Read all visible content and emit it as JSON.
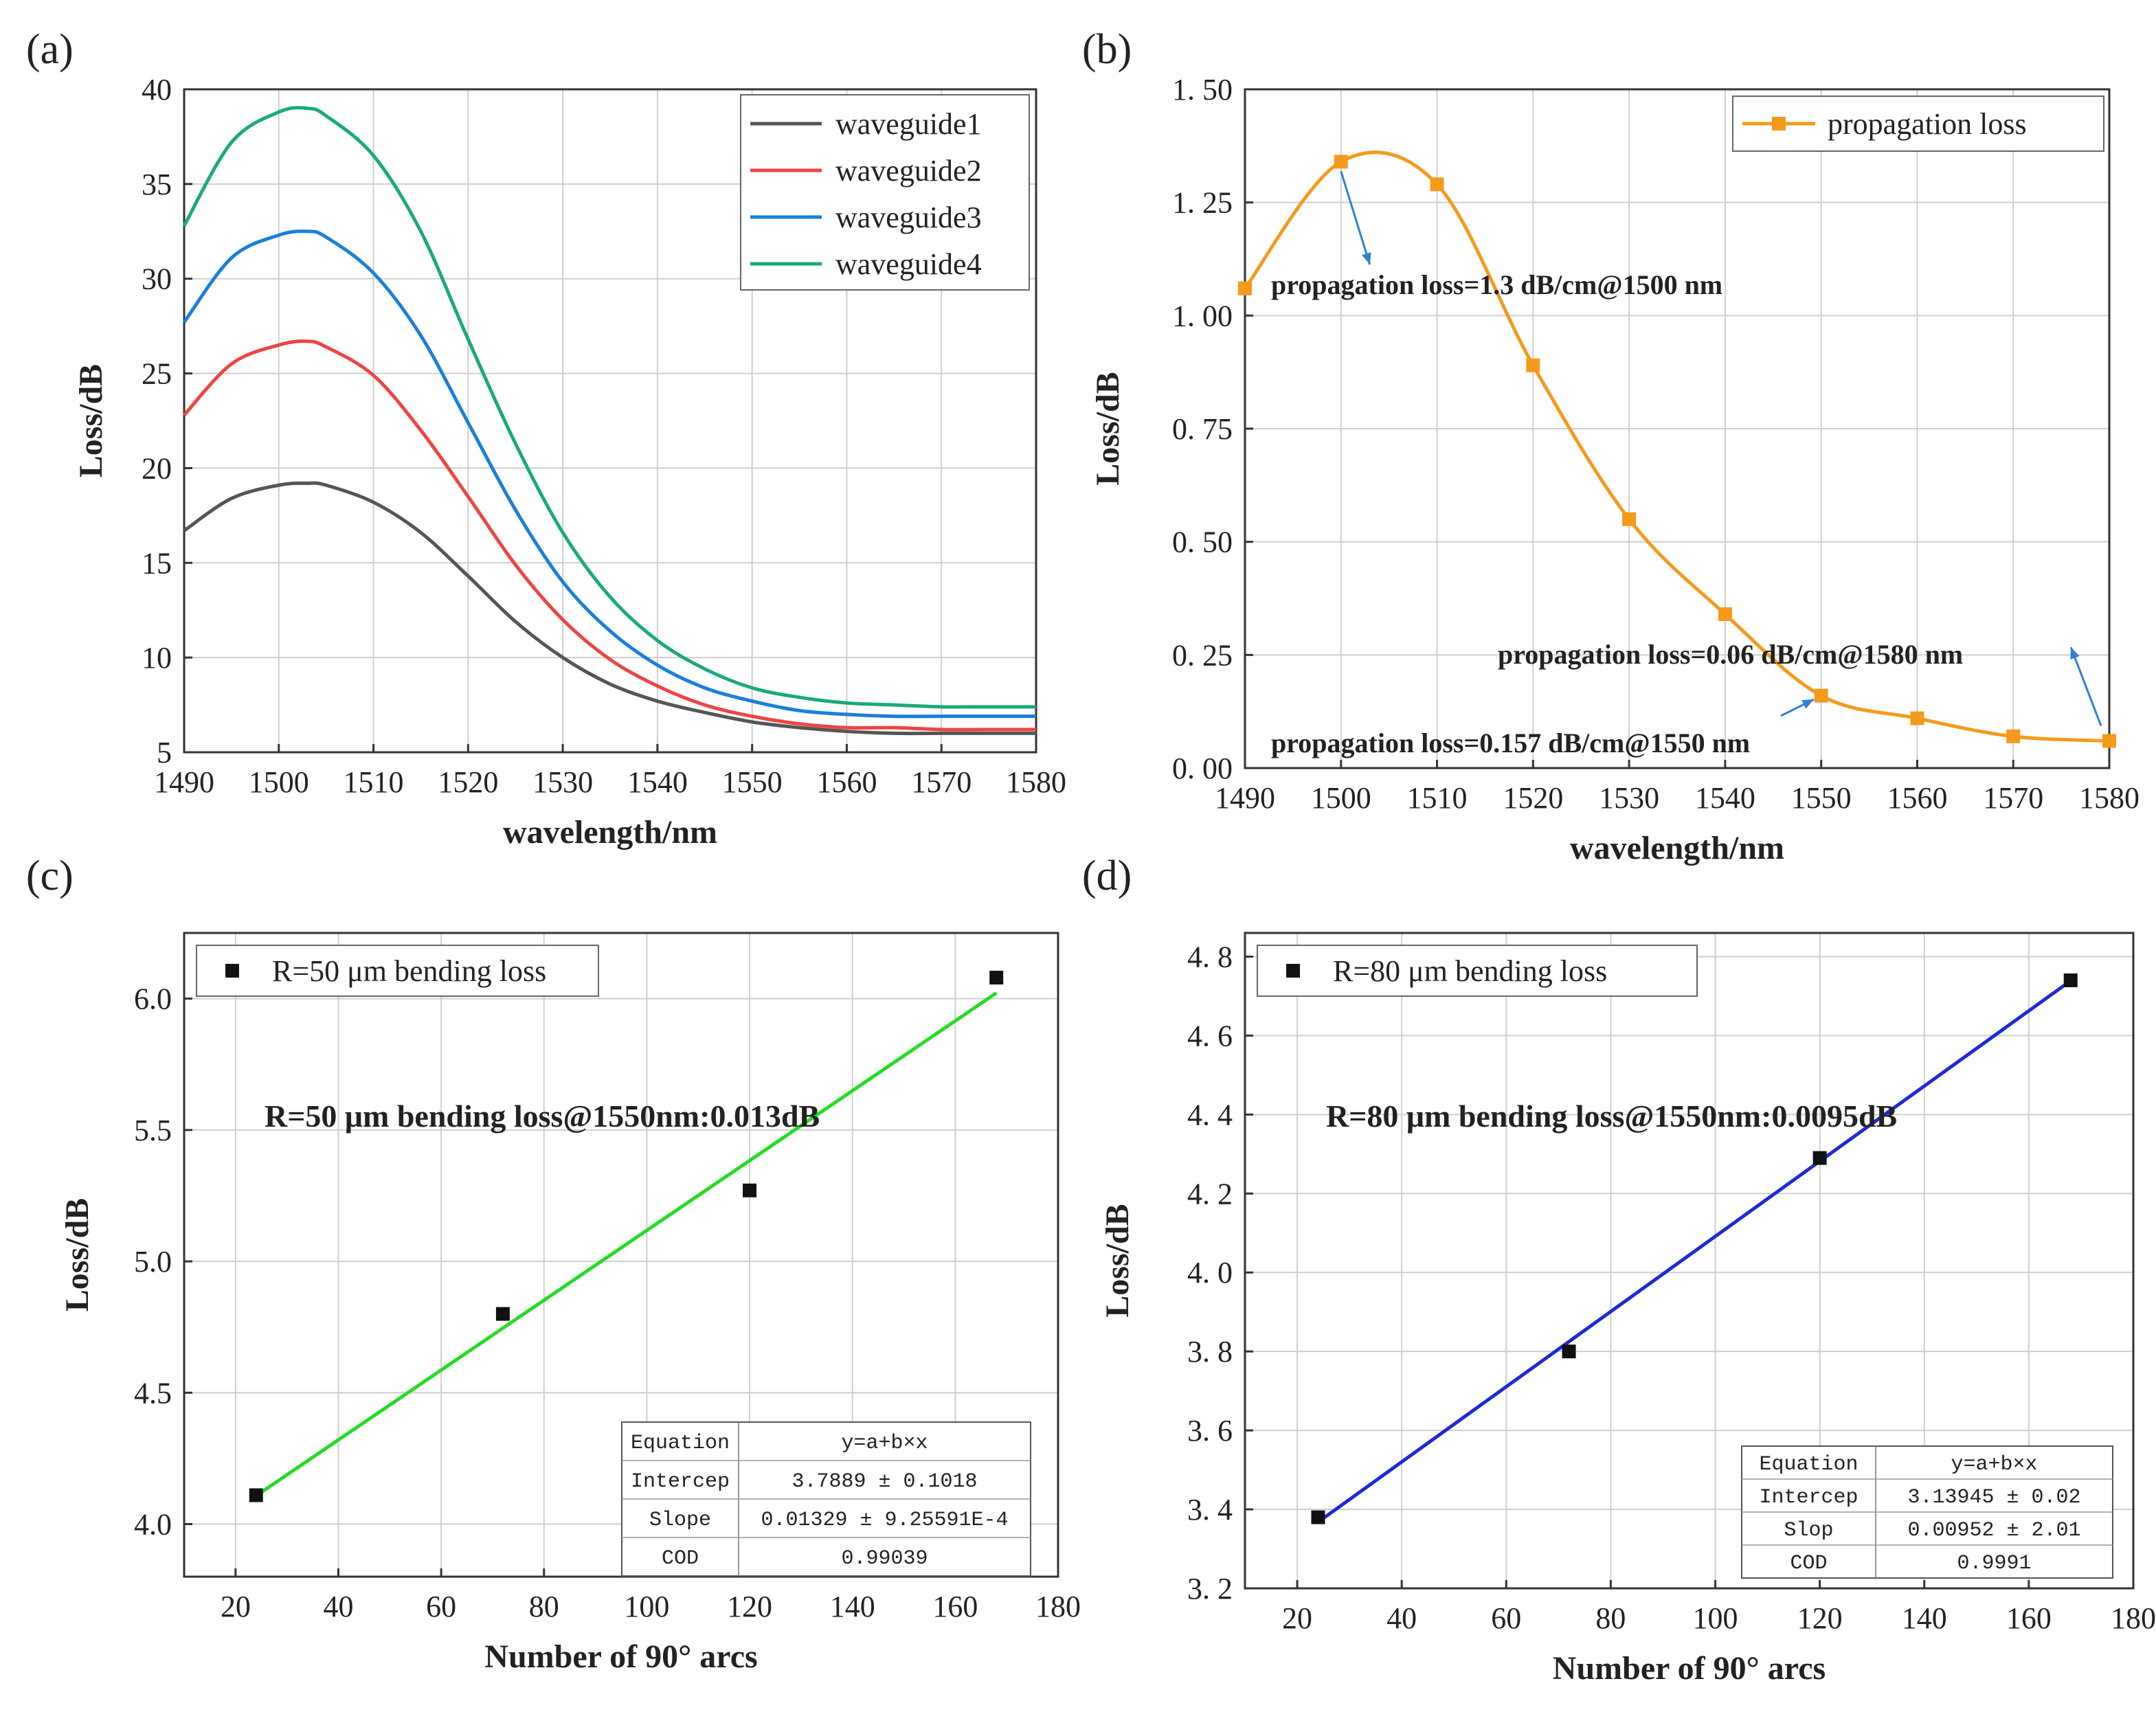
{
  "chart_data": [
    {
      "id": "a",
      "type": "line",
      "panel_label": "(a)",
      "xlabel": "wavelength/nm",
      "ylabel": "Loss/dB",
      "xlim": [
        1490,
        1580
      ],
      "ylim": [
        5,
        40
      ],
      "xticks": [
        1490,
        1500,
        1510,
        1520,
        1530,
        1540,
        1550,
        1560,
        1570,
        1580
      ],
      "yticks": [
        5,
        10,
        15,
        20,
        25,
        30,
        35,
        40
      ],
      "grid": true,
      "legend_position": "top-right",
      "x": [
        1490,
        1495,
        1500,
        1503,
        1505,
        1510,
        1515,
        1520,
        1525,
        1530,
        1535,
        1540,
        1545,
        1550,
        1555,
        1560,
        1565,
        1570,
        1575,
        1580
      ],
      "series": [
        {
          "name": "waveguide1",
          "color": "#555555",
          "values": [
            16.7,
            18.4,
            19.1,
            19.2,
            19.1,
            18.2,
            16.6,
            14.3,
            11.9,
            10.0,
            8.6,
            7.7,
            7.1,
            6.6,
            6.3,
            6.1,
            6.0,
            6.0,
            6.0,
            6.0
          ]
        },
        {
          "name": "waveguide2",
          "color": "#ee4444",
          "values": [
            22.8,
            25.5,
            26.5,
            26.7,
            26.4,
            24.9,
            22.0,
            18.5,
            14.9,
            12.0,
            9.9,
            8.5,
            7.5,
            6.9,
            6.5,
            6.3,
            6.3,
            6.2,
            6.2,
            6.2
          ]
        },
        {
          "name": "waveguide3",
          "color": "#1a7fdc",
          "values": [
            27.7,
            31.1,
            32.3,
            32.5,
            32.2,
            30.3,
            27.0,
            22.4,
            17.8,
            14.0,
            11.4,
            9.6,
            8.4,
            7.7,
            7.2,
            7.0,
            6.9,
            6.9,
            6.9,
            6.9
          ]
        },
        {
          "name": "waveguide4",
          "color": "#1aaa7a",
          "values": [
            32.8,
            37.2,
            38.8,
            39.0,
            38.6,
            36.5,
            32.5,
            26.8,
            21.3,
            16.6,
            13.2,
            10.9,
            9.4,
            8.4,
            7.9,
            7.6,
            7.5,
            7.4,
            7.4,
            7.4
          ]
        }
      ]
    },
    {
      "id": "b",
      "type": "line",
      "panel_label": "(b)",
      "xlabel": "wavelength/nm",
      "ylabel": "Loss/dB",
      "xlim": [
        1490,
        1580
      ],
      "ylim": [
        0,
        1.5
      ],
      "xticks": [
        1490,
        1500,
        1510,
        1520,
        1530,
        1540,
        1550,
        1560,
        1570,
        1580
      ],
      "yticks": [
        0.0,
        0.25,
        0.5,
        0.75,
        1.0,
        1.25,
        1.5
      ],
      "ytick_labels": [
        "0. 00",
        "0. 25",
        "0. 50",
        "0. 75",
        "1. 00",
        "1. 25",
        "1. 50"
      ],
      "grid": true,
      "legend_position": "top-right",
      "series": [
        {
          "name": "propagation loss",
          "color": "#f59a1c",
          "x": [
            1490,
            1500,
            1510,
            1520,
            1530,
            1540,
            1550,
            1560,
            1570,
            1580
          ],
          "values": [
            1.06,
            1.34,
            1.29,
            0.89,
            0.55,
            0.34,
            0.16,
            0.11,
            0.07,
            0.06
          ]
        }
      ],
      "annotations": [
        {
          "text": "propagation loss=1.3 dB/cm@1500 nm",
          "x": 1500,
          "y": 1.34
        },
        {
          "text": "propagation loss=0.06 dB/cm@1580 nm",
          "x": 1580,
          "y": 0.06
        },
        {
          "text": "propagation loss=0.157 dB/cm@1550 nm",
          "x": 1550,
          "y": 0.157
        }
      ]
    },
    {
      "id": "c",
      "type": "scatter",
      "panel_label": "(c)",
      "xlabel": "Number of 90° arcs",
      "ylabel": "Loss/dB",
      "xlim": [
        10,
        180
      ],
      "ylim": [
        3.8,
        6.25
      ],
      "xticks": [
        20,
        40,
        60,
        80,
        100,
        120,
        140,
        160,
        180
      ],
      "yticks": [
        4.0,
        4.5,
        5.0,
        5.5,
        6.0
      ],
      "ytick_labels": [
        "4.0",
        "4.5",
        "5.0",
        "5.5",
        "6.0"
      ],
      "grid": true,
      "legend_position": "top-left",
      "points": {
        "name": "R=50 μm bending loss",
        "x": [
          24,
          72,
          120,
          168
        ],
        "y": [
          4.11,
          4.8,
          5.27,
          6.08
        ]
      },
      "fit": {
        "color": "#22dd22",
        "intercept": 3.7889,
        "slope": 0.01329,
        "x_range": [
          24,
          168
        ]
      },
      "headline": "R=50 μm bending loss@1550nm:0.013dB",
      "table": [
        [
          "Equation",
          "y=a+b×x"
        ],
        [
          "Intercep",
          "3.7889 ± 0.1018"
        ],
        [
          "Slope",
          "0.01329 ± 9.25591E-4"
        ],
        [
          "COD",
          "0.99039"
        ]
      ]
    },
    {
      "id": "d",
      "type": "scatter",
      "panel_label": "(d)",
      "xlabel": "Number of 90° arcs",
      "ylabel": "Loss/dB",
      "xlim": [
        10,
        180
      ],
      "ylim": [
        3.2,
        4.86
      ],
      "xticks": [
        20,
        40,
        60,
        80,
        100,
        120,
        140,
        160,
        180
      ],
      "yticks": [
        3.2,
        3.4,
        3.6,
        3.8,
        4.0,
        4.2,
        4.4,
        4.6,
        4.8
      ],
      "ytick_labels": [
        "3. 2",
        "3. 4",
        "3. 6",
        "3. 8",
        "4. 0",
        "4. 2",
        "4. 4",
        "4. 6",
        "4. 8"
      ],
      "grid": true,
      "legend_position": "top-left",
      "points": {
        "name": "R=80 μm bending loss",
        "x": [
          24,
          72,
          120,
          168
        ],
        "y": [
          3.38,
          3.8,
          4.29,
          4.74
        ]
      },
      "fit": {
        "color": "#1c2ad8",
        "intercept": 3.13945,
        "slope": 0.00952,
        "x_range": [
          24,
          168
        ]
      },
      "headline": "R=80 μm bending loss@1550nm:0.0095dB",
      "table": [
        [
          "Equation",
          "y=a+b×x"
        ],
        [
          "Intercep",
          "3.13945 ± 0.02"
        ],
        [
          "Slop",
          "0.00952 ± 2.01"
        ],
        [
          "COD",
          "0.9991"
        ]
      ]
    }
  ]
}
